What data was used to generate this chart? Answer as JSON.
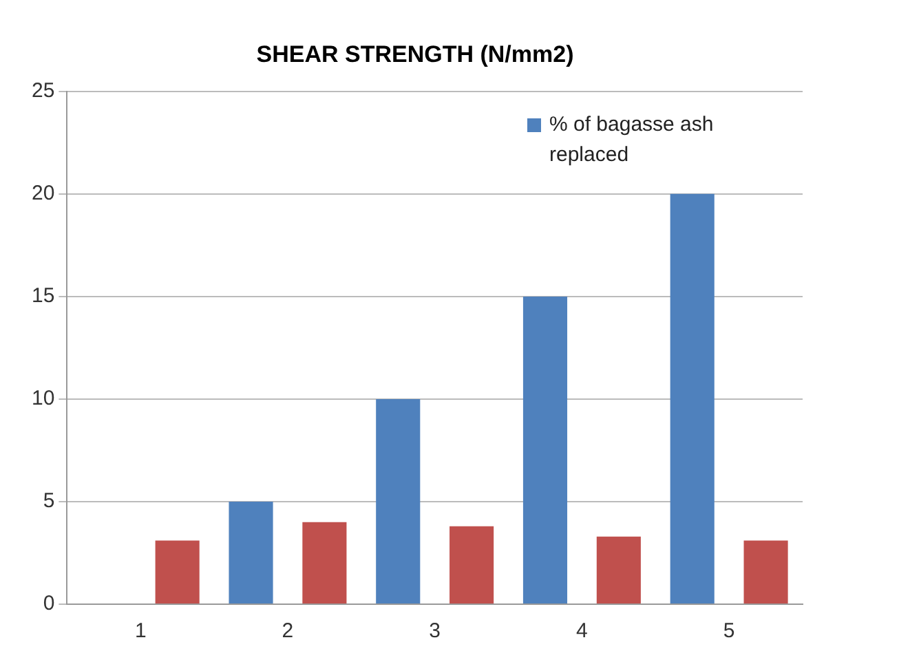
{
  "chart_data": {
    "type": "bar",
    "title": "SHEAR STRENGTH (N/mm2)",
    "categories": [
      "1",
      "2",
      "3",
      "4",
      "5"
    ],
    "series": [
      {
        "name": "% of bagasse ash replaced",
        "color": "#4f81bd",
        "values": [
          0,
          5,
          10,
          15,
          20
        ]
      },
      {
        "color": "#c0504d",
        "values": [
          3.1,
          4.0,
          3.8,
          3.3,
          3.1
        ]
      }
    ],
    "ylim": [
      0,
      25
    ],
    "yticks": [
      0,
      5,
      10,
      15,
      20,
      25
    ],
    "grid": "y",
    "legend": "top right"
  }
}
